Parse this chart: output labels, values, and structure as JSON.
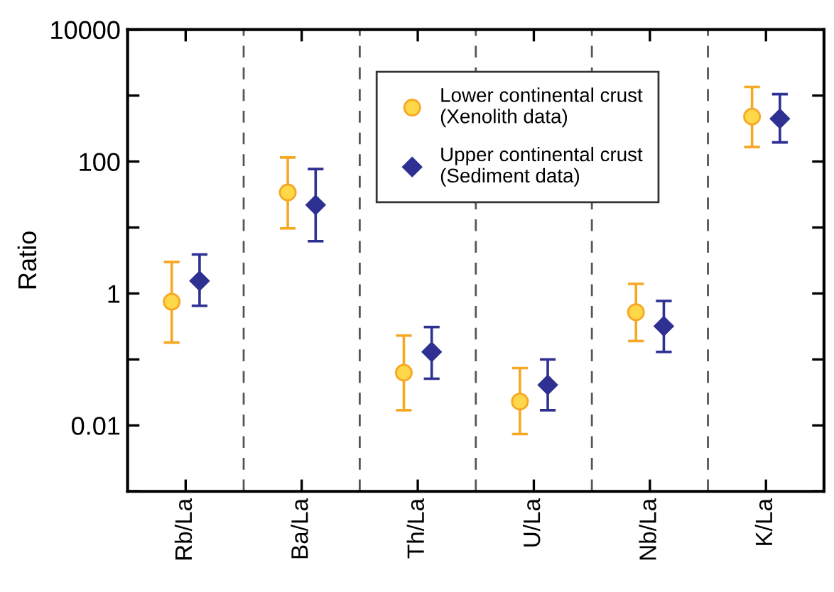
{
  "chart_data": {
    "type": "scatter",
    "ylabel": "Ratio",
    "categories": [
      "Rb/La",
      "Ba/La",
      "Th/La",
      "U/La",
      "Nb/La",
      "K/La"
    ],
    "log": "y",
    "ylim": [
      0.001,
      10000
    ],
    "yticks": [
      {
        "value": 0.001,
        "label": null
      },
      0.01,
      {
        "value": 0.1,
        "label": null
      },
      1,
      {
        "value": 10,
        "label": null
      },
      100,
      {
        "value": 1000,
        "label": null
      },
      10000
    ],
    "grid": "x",
    "legend": "top",
    "series": [
      {
        "name": "Lower continental crust\n(Xenolith data)",
        "color": "#f7a823",
        "marker": "circle",
        "values": [
          0.75,
          34,
          0.063,
          0.023,
          0.52,
          480
        ],
        "errors": [
          [
            0.18,
            3.0
          ],
          [
            9.7,
            115
          ],
          [
            0.017,
            0.23
          ],
          [
            0.0074,
            0.074
          ],
          [
            0.19,
            1.4
          ],
          [
            166,
            1350
          ]
        ]
      },
      {
        "name": "Upper continental crust\n(Sediment data)",
        "color": "#2e3192",
        "marker": "diamond",
        "values": [
          1.55,
          22,
          0.13,
          0.041,
          0.32,
          445
        ],
        "errors": [
          [
            0.65,
            3.9
          ],
          [
            6.2,
            77
          ],
          [
            0.051,
            0.31
          ],
          [
            0.017,
            0.1
          ],
          [
            0.13,
            0.77
          ],
          [
            195,
            1050
          ]
        ]
      }
    ]
  }
}
